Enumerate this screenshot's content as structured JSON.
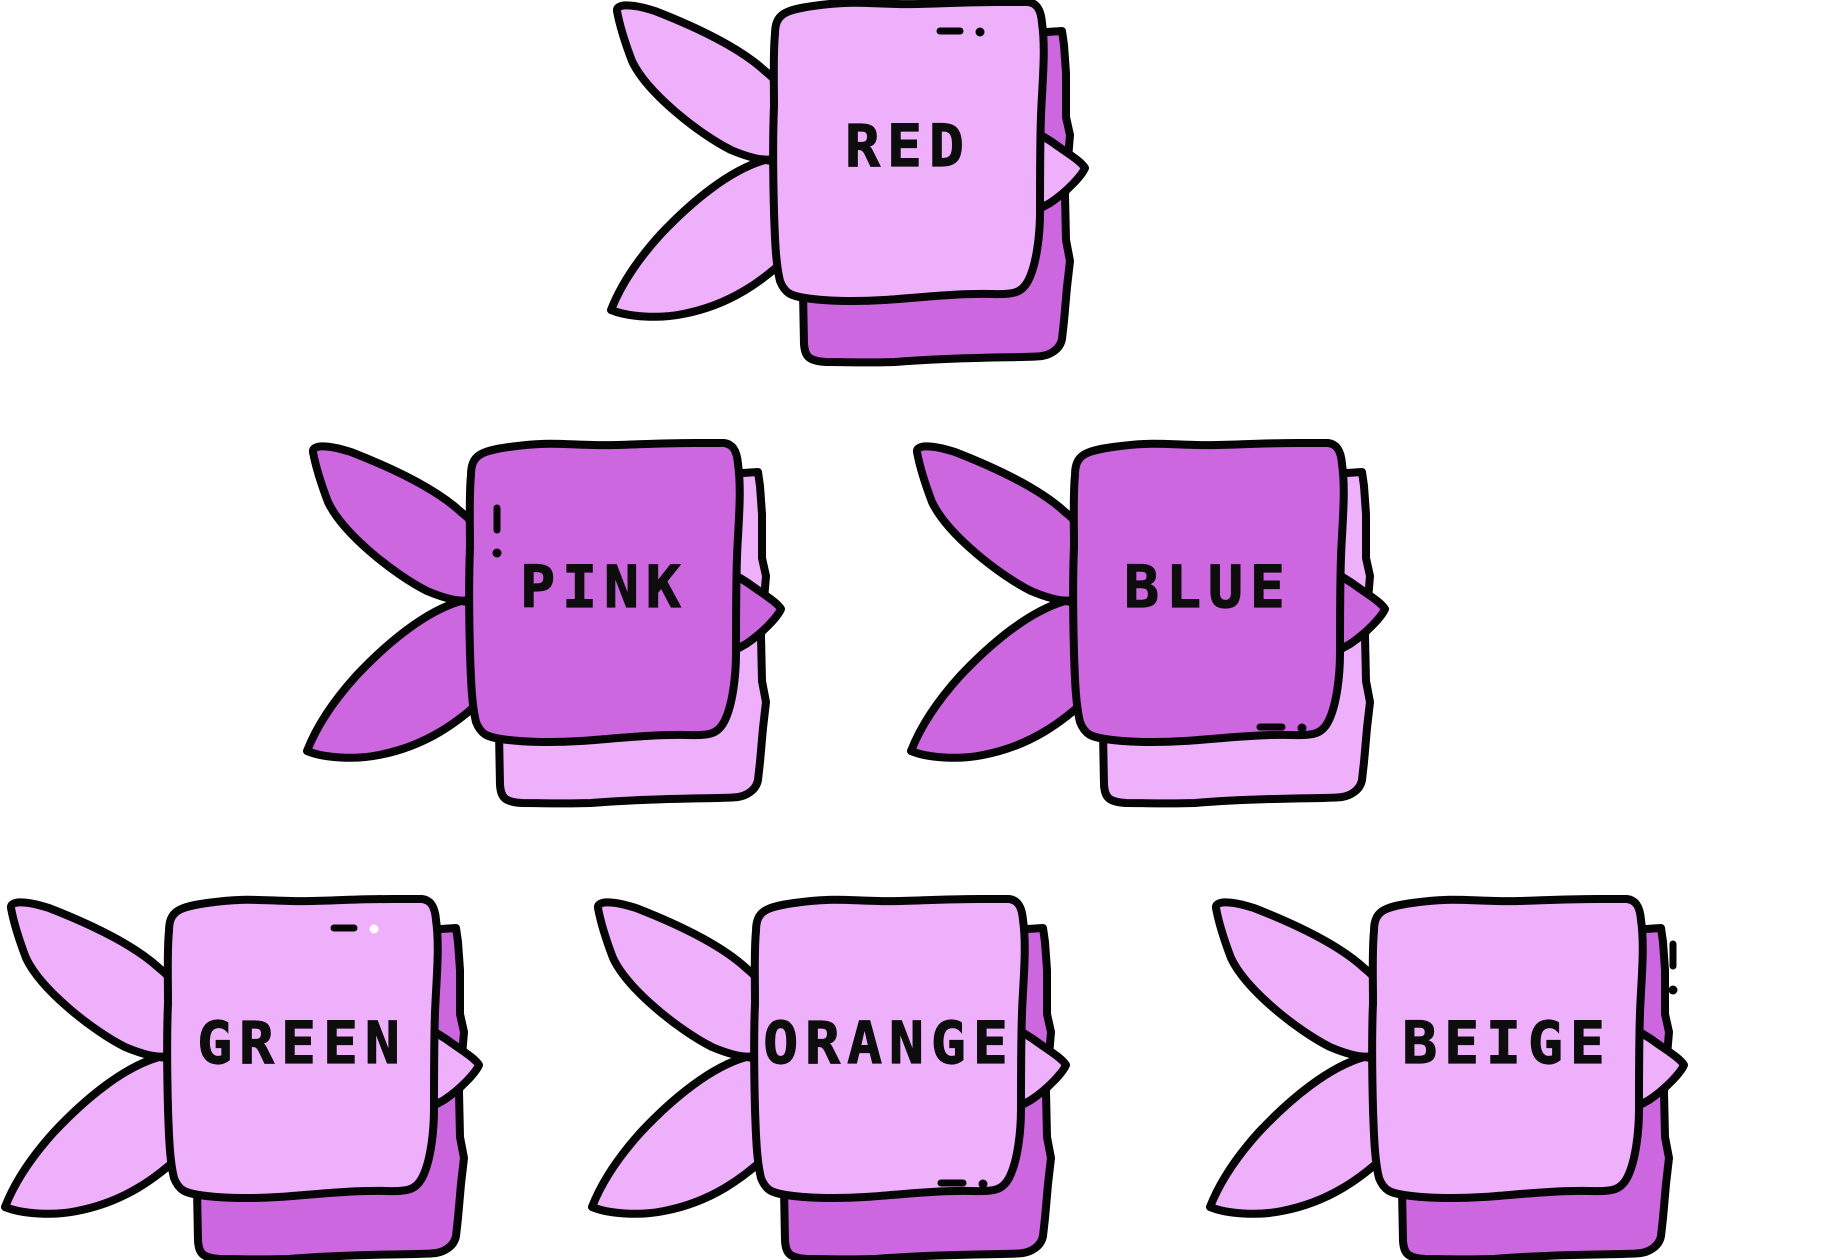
{
  "palette": {
    "light": "#EFB0FB",
    "dark": "#CC67DF",
    "outline": "#050505",
    "text": "#0d0d0d",
    "background": "#ffffff"
  },
  "tags": [
    {
      "label": "RED",
      "variant": "light",
      "decoration": "top-dots"
    },
    {
      "label": "PINK",
      "variant": "dark",
      "decoration": "left-bar"
    },
    {
      "label": "BLUE",
      "variant": "dark",
      "decoration": "bottom-dots"
    },
    {
      "label": "GREEN",
      "variant": "light",
      "decoration": "top-dots"
    },
    {
      "label": "ORANGE",
      "variant": "light",
      "decoration": "bottom-dots"
    },
    {
      "label": "BEIGE",
      "variant": "light",
      "decoration": "right-bar"
    }
  ]
}
